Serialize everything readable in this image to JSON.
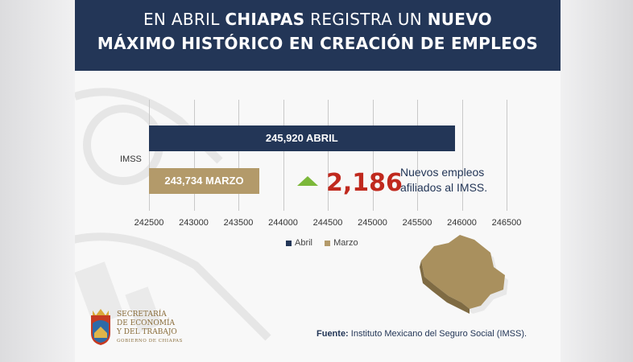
{
  "header": {
    "line1_pre": "EN ABRIL ",
    "line1_bold": "CHIAPAS",
    "line1_mid": " REGISTRA UN ",
    "line1_bold2": "NUEVO",
    "line2": "MÁXIMO HISTÓRICO EN CREACIÓN DE EMPLEOS"
  },
  "chart_data": {
    "type": "bar",
    "orientation": "horizontal",
    "categories": [
      "IMSS"
    ],
    "series": [
      {
        "name": "Abril",
        "values": [
          245920
        ],
        "label": "245,920 ABRIL",
        "color": "#233657"
      },
      {
        "name": "Marzo",
        "values": [
          243734
        ],
        "label": "243,734 MARZO",
        "color": "#b39a6a"
      }
    ],
    "xlim": [
      242500,
      246500
    ],
    "xticks": [
      "242500",
      "243000",
      "243500",
      "244000",
      "244500",
      "245000",
      "245500",
      "246000",
      "246500"
    ],
    "grid": true,
    "legend_position": "bottom",
    "annotation": {
      "value": "2,186",
      "text_line1": "Nuevos empleos",
      "text_line2": "afiliados al IMSS."
    }
  },
  "colors": {
    "navy": "#233657",
    "gold": "#b39a6a",
    "red": "#c0291e",
    "green": "#7cb83a"
  },
  "source": {
    "label": "Fuente:",
    "text": " Instituto Mexicano del Seguro Social (IMSS)."
  },
  "logo": {
    "line1": "SECRETARÍA",
    "line2": "DE ECONOMÍA",
    "line3": "Y DEL TRABAJO",
    "line4": "GOBIERNO DE CHIAPAS"
  }
}
